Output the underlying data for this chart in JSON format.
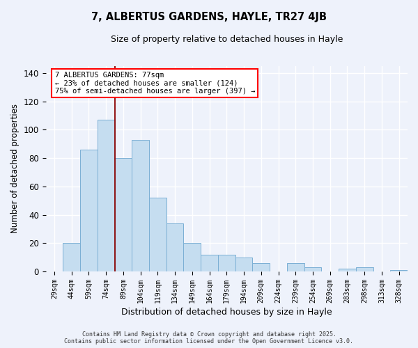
{
  "title": "7, ALBERTUS GARDENS, HAYLE, TR27 4JB",
  "subtitle": "Size of property relative to detached houses in Hayle",
  "xlabel": "Distribution of detached houses by size in Hayle",
  "ylabel": "Number of detached properties",
  "categories": [
    "29sqm",
    "44sqm",
    "59sqm",
    "74sqm",
    "89sqm",
    "104sqm",
    "119sqm",
    "134sqm",
    "149sqm",
    "164sqm",
    "179sqm",
    "194sqm",
    "209sqm",
    "224sqm",
    "239sqm",
    "254sqm",
    "269sqm",
    "283sqm",
    "298sqm",
    "313sqm",
    "328sqm"
  ],
  "values": [
    0,
    20,
    86,
    107,
    80,
    93,
    52,
    34,
    20,
    12,
    12,
    10,
    6,
    0,
    6,
    3,
    0,
    2,
    3,
    0,
    1
  ],
  "bar_color": "#c5ddf0",
  "bar_edge_color": "#7bafd4",
  "ylim": [
    0,
    145
  ],
  "yticks": [
    0,
    20,
    40,
    60,
    80,
    100,
    120,
    140
  ],
  "vline_x_index": 3,
  "vline_color": "#8b0000",
  "annotation_line1": "7 ALBERTUS GARDENS: 77sqm",
  "annotation_line2": "← 23% of detached houses are smaller (124)",
  "annotation_line3": "75% of semi-detached houses are larger (397) →",
  "annotation_box_color": "white",
  "annotation_box_edge_color": "red",
  "footer_line1": "Contains HM Land Registry data © Crown copyright and database right 2025.",
  "footer_line2": "Contains public sector information licensed under the Open Government Licence v3.0.",
  "background_color": "#eef2fb"
}
